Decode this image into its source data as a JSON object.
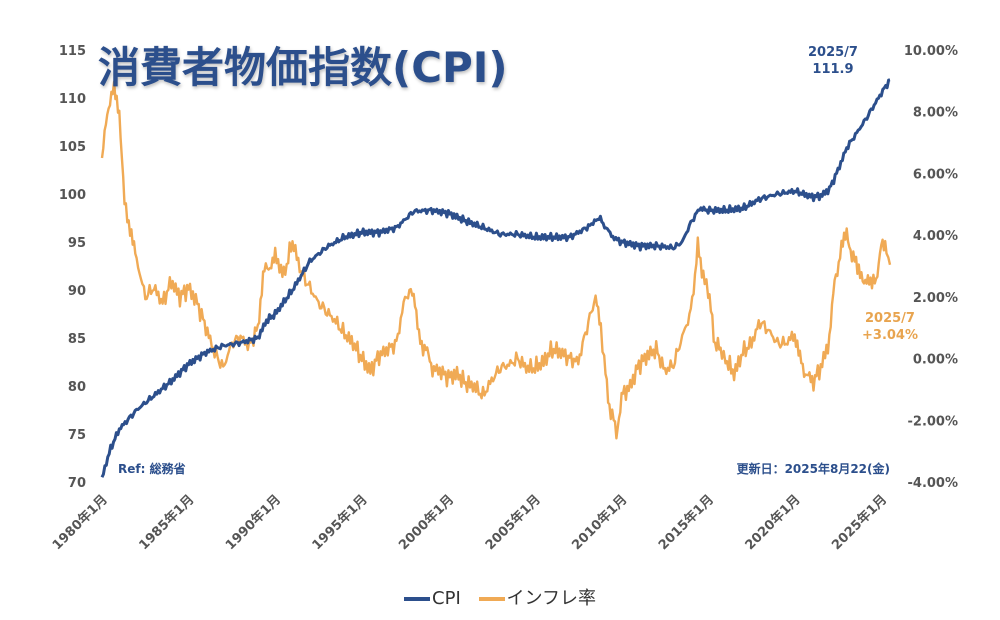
{
  "title": "消費者物価指数(CPI)",
  "ref": "Ref: 総務省",
  "updated": "更新日：2025年8月22(金)",
  "annotations": {
    "cpi_date": "2025/7",
    "cpi_value": "111.9",
    "inflation_date": "2025/7",
    "inflation_value": "+3.04%"
  },
  "colors": {
    "cpi": "#2c4f8c",
    "inflation": "#f0aa55",
    "axis_text": "#555555"
  },
  "chart_data": {
    "type": "line",
    "title": "消費者物価指数(CPI)",
    "x_tick_labels": [
      "1980年1月",
      "1985年1月",
      "1990年1月",
      "1995年1月",
      "2000年1月",
      "2005年1月",
      "2010年1月",
      "2015年1月",
      "2020年1月",
      "2025年1月"
    ],
    "x_range": [
      1980.0,
      2025.5
    ],
    "y_left": {
      "range": [
        70,
        115
      ],
      "ticks": [
        "70",
        "75",
        "80",
        "85",
        "90",
        "95",
        "100",
        "105",
        "110",
        "115"
      ]
    },
    "y_right": {
      "range": [
        -4,
        10
      ],
      "ticks": [
        "-4.00%",
        "-2.00%",
        "0.00%",
        "2.00%",
        "4.00%",
        "6.00%",
        "8.00%",
        "10.00%"
      ]
    },
    "legend": [
      "CPI",
      "インフレ率"
    ],
    "series": [
      {
        "name": "CPI",
        "axis": "left",
        "points": [
          [
            1980.0,
            70.5
          ],
          [
            1980.5,
            73.5
          ],
          [
            1981.0,
            75.5
          ],
          [
            1982.0,
            77.5
          ],
          [
            1983.0,
            79.0
          ],
          [
            1984.0,
            80.5
          ],
          [
            1985.0,
            82.3
          ],
          [
            1986.0,
            83.5
          ],
          [
            1987.0,
            84.2
          ],
          [
            1988.0,
            84.5
          ],
          [
            1989.0,
            85.0
          ],
          [
            1989.5,
            86.8
          ],
          [
            1990.0,
            87.5
          ],
          [
            1991.0,
            90.0
          ],
          [
            1992.0,
            93.0
          ],
          [
            1993.0,
            94.5
          ],
          [
            1994.0,
            95.5
          ],
          [
            1995.0,
            96.0
          ],
          [
            1996.0,
            96.0
          ],
          [
            1997.0,
            96.5
          ],
          [
            1998.0,
            98.2
          ],
          [
            1999.0,
            98.3
          ],
          [
            2000.0,
            98.0
          ],
          [
            2001.0,
            97.2
          ],
          [
            2002.0,
            96.5
          ],
          [
            2003.0,
            95.8
          ],
          [
            2004.0,
            95.8
          ],
          [
            2005.0,
            95.5
          ],
          [
            2006.0,
            95.5
          ],
          [
            2007.0,
            95.5
          ],
          [
            2008.0,
            96.5
          ],
          [
            2008.7,
            97.5
          ],
          [
            2009.5,
            95.5
          ],
          [
            2010.0,
            95.0
          ],
          [
            2011.0,
            94.6
          ],
          [
            2012.0,
            94.6
          ],
          [
            2013.0,
            94.4
          ],
          [
            2013.5,
            95.0
          ],
          [
            2014.0,
            97.0
          ],
          [
            2014.5,
            98.5
          ],
          [
            2015.0,
            98.3
          ],
          [
            2016.0,
            98.3
          ],
          [
            2017.0,
            98.5
          ],
          [
            2018.0,
            99.5
          ],
          [
            2019.0,
            100.0
          ],
          [
            2020.0,
            100.3
          ],
          [
            2021.0,
            99.7
          ],
          [
            2021.5,
            99.8
          ],
          [
            2022.0,
            100.5
          ],
          [
            2022.5,
            102.5
          ],
          [
            2023.0,
            104.8
          ],
          [
            2024.0,
            107.5
          ],
          [
            2025.0,
            110.5
          ],
          [
            2025.5,
            111.9
          ]
        ]
      },
      {
        "name": "インフレ率",
        "axis": "right",
        "points": [
          [
            1980.0,
            6.5
          ],
          [
            1980.3,
            8.0
          ],
          [
            1980.7,
            8.8
          ],
          [
            1981.0,
            8.0
          ],
          [
            1981.3,
            5.0
          ],
          [
            1981.7,
            4.0
          ],
          [
            1982.0,
            3.2
          ],
          [
            1982.5,
            2.0
          ],
          [
            1983.0,
            2.3
          ],
          [
            1983.5,
            1.8
          ],
          [
            1984.0,
            2.5
          ],
          [
            1984.5,
            2.0
          ],
          [
            1985.0,
            2.3
          ],
          [
            1985.5,
            1.8
          ],
          [
            1986.0,
            1.0
          ],
          [
            1986.5,
            0.2
          ],
          [
            1987.0,
            -0.3
          ],
          [
            1987.5,
            0.5
          ],
          [
            1988.0,
            0.7
          ],
          [
            1988.5,
            0.4
          ],
          [
            1989.0,
            1.0
          ],
          [
            1989.3,
            2.8
          ],
          [
            1989.7,
            3.0
          ],
          [
            1990.0,
            3.3
          ],
          [
            1990.5,
            2.7
          ],
          [
            1991.0,
            3.8
          ],
          [
            1991.5,
            2.8
          ],
          [
            1992.0,
            2.3
          ],
          [
            1992.5,
            1.8
          ],
          [
            1993.0,
            1.5
          ],
          [
            1993.5,
            1.2
          ],
          [
            1994.0,
            0.8
          ],
          [
            1994.5,
            0.5
          ],
          [
            1995.0,
            0.0
          ],
          [
            1995.5,
            -0.4
          ],
          [
            1996.0,
            0.1
          ],
          [
            1996.5,
            0.3
          ],
          [
            1997.0,
            0.5
          ],
          [
            1997.5,
            2.0
          ],
          [
            1998.0,
            2.2
          ],
          [
            1998.3,
            0.6
          ],
          [
            1998.7,
            0.3
          ],
          [
            1999.0,
            -0.3
          ],
          [
            1999.5,
            -0.4
          ],
          [
            2000.0,
            -0.6
          ],
          [
            2000.5,
            -0.5
          ],
          [
            2001.0,
            -0.8
          ],
          [
            2001.5,
            -0.9
          ],
          [
            2002.0,
            -1.2
          ],
          [
            2002.5,
            -0.7
          ],
          [
            2003.0,
            -0.3
          ],
          [
            2003.5,
            -0.2
          ],
          [
            2004.0,
            0.0
          ],
          [
            2004.5,
            -0.3
          ],
          [
            2005.0,
            -0.3
          ],
          [
            2005.5,
            -0.1
          ],
          [
            2006.0,
            0.3
          ],
          [
            2006.5,
            0.2
          ],
          [
            2007.0,
            0.0
          ],
          [
            2007.5,
            -0.1
          ],
          [
            2008.0,
            1.0
          ],
          [
            2008.5,
            2.0
          ],
          [
            2008.8,
            1.0
          ],
          [
            2009.0,
            -0.1
          ],
          [
            2009.3,
            -1.5
          ],
          [
            2009.7,
            -2.4
          ],
          [
            2010.0,
            -1.2
          ],
          [
            2010.5,
            -0.9
          ],
          [
            2011.0,
            -0.2
          ],
          [
            2011.5,
            0.1
          ],
          [
            2012.0,
            0.3
          ],
          [
            2012.5,
            -0.4
          ],
          [
            2013.0,
            -0.2
          ],
          [
            2013.5,
            0.7
          ],
          [
            2014.0,
            1.5
          ],
          [
            2014.4,
            3.6
          ],
          [
            2014.8,
            2.5
          ],
          [
            2015.0,
            2.2
          ],
          [
            2015.4,
            0.5
          ],
          [
            2015.8,
            0.2
          ],
          [
            2016.0,
            0.0
          ],
          [
            2016.5,
            -0.5
          ],
          [
            2017.0,
            0.2
          ],
          [
            2017.5,
            0.5
          ],
          [
            2018.0,
            1.2
          ],
          [
            2018.5,
            0.9
          ],
          [
            2019.0,
            0.5
          ],
          [
            2019.5,
            0.5
          ],
          [
            2020.0,
            0.8
          ],
          [
            2020.3,
            0.0
          ],
          [
            2020.7,
            -0.6
          ],
          [
            2021.0,
            -0.8
          ],
          [
            2021.5,
            -0.3
          ],
          [
            2022.0,
            0.6
          ],
          [
            2022.3,
            2.5
          ],
          [
            2022.7,
            3.5
          ],
          [
            2023.0,
            4.2
          ],
          [
            2023.3,
            3.3
          ],
          [
            2023.7,
            3.0
          ],
          [
            2024.0,
            2.3
          ],
          [
            2024.3,
            2.6
          ],
          [
            2024.7,
            2.4
          ],
          [
            2025.0,
            3.9
          ],
          [
            2025.3,
            3.5
          ],
          [
            2025.5,
            3.04
          ]
        ]
      }
    ]
  }
}
